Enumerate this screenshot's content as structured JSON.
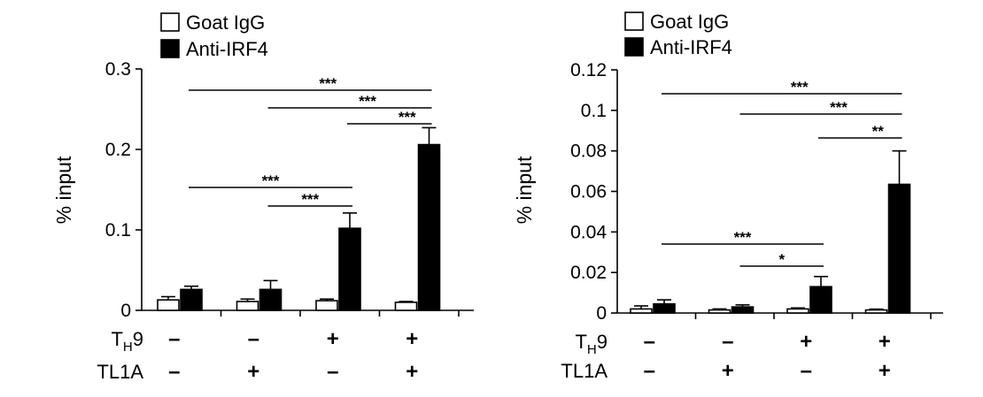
{
  "chart_data": [
    {
      "type": "bar",
      "ylabel": "% input",
      "ylim": [
        0,
        0.3
      ],
      "yticks": [
        "0",
        "0.1",
        "0.2",
        "0.3"
      ],
      "ytick_values": [
        0,
        0.1,
        0.2,
        0.3
      ],
      "legend": [
        {
          "label": "Goat IgG",
          "fill": "#ffffff"
        },
        {
          "label": "Anti-IRF4",
          "fill": "#000000"
        }
      ],
      "series": [
        {
          "name": "Goat IgG",
          "values": [
            0.013,
            0.011,
            0.012,
            0.01
          ],
          "errors": [
            0.004,
            0.003,
            0.002,
            0.001
          ]
        },
        {
          "name": "Anti-IRF4",
          "values": [
            0.026,
            0.026,
            0.102,
            0.206
          ],
          "errors": [
            0.004,
            0.011,
            0.019,
            0.021
          ]
        }
      ],
      "conditions": {
        "th9": {
          "label_main": "T",
          "label_sub": "H",
          "label_end": "9",
          "values": [
            "–",
            "–",
            "+",
            "+"
          ]
        },
        "tl1a": {
          "label": "TL1A",
          "values": [
            "–",
            "+",
            "–",
            "+"
          ]
        }
      },
      "significance": [
        {
          "from": 0,
          "to": 3,
          "label": "***"
        },
        {
          "from": 1,
          "to": 3,
          "label": "***"
        },
        {
          "from": 2,
          "to": 3,
          "label": "***"
        },
        {
          "from": 0,
          "to": 2,
          "label": "***"
        },
        {
          "from": 1,
          "to": 2,
          "label": "***"
        }
      ]
    },
    {
      "type": "bar",
      "ylabel": "% input",
      "ylim": [
        0,
        0.12
      ],
      "yticks": [
        "0",
        "0.02",
        "0.04",
        "0.06",
        "0.08",
        "0.1",
        "0.12"
      ],
      "ytick_values": [
        0,
        0.02,
        0.04,
        0.06,
        0.08,
        0.1,
        0.12
      ],
      "legend": [
        {
          "label": "Goat IgG",
          "fill": "#ffffff"
        },
        {
          "label": "Anti-IRF4",
          "fill": "#000000"
        }
      ],
      "series": [
        {
          "name": "Goat IgG",
          "values": [
            0.002,
            0.0015,
            0.002,
            0.0015
          ],
          "errors": [
            0.0015,
            0.0005,
            0.0005,
            0.0004
          ]
        },
        {
          "name": "Anti-IRF4",
          "values": [
            0.0045,
            0.003,
            0.013,
            0.0635
          ],
          "errors": [
            0.002,
            0.001,
            0.005,
            0.0165
          ]
        }
      ],
      "conditions": {
        "th9": {
          "label_main": "T",
          "label_sub": "H",
          "label_end": "9",
          "values": [
            "–",
            "–",
            "+",
            "+"
          ]
        },
        "tl1a": {
          "label": "TL1A",
          "values": [
            "–",
            "+",
            "–",
            "+"
          ]
        }
      },
      "significance": [
        {
          "from": 0,
          "to": 3,
          "label": "***"
        },
        {
          "from": 1,
          "to": 3,
          "label": "***"
        },
        {
          "from": 2,
          "to": 3,
          "label": "**"
        },
        {
          "from": 0,
          "to": 2,
          "label": "***"
        },
        {
          "from": 1,
          "to": 2,
          "label": "*"
        }
      ]
    }
  ]
}
